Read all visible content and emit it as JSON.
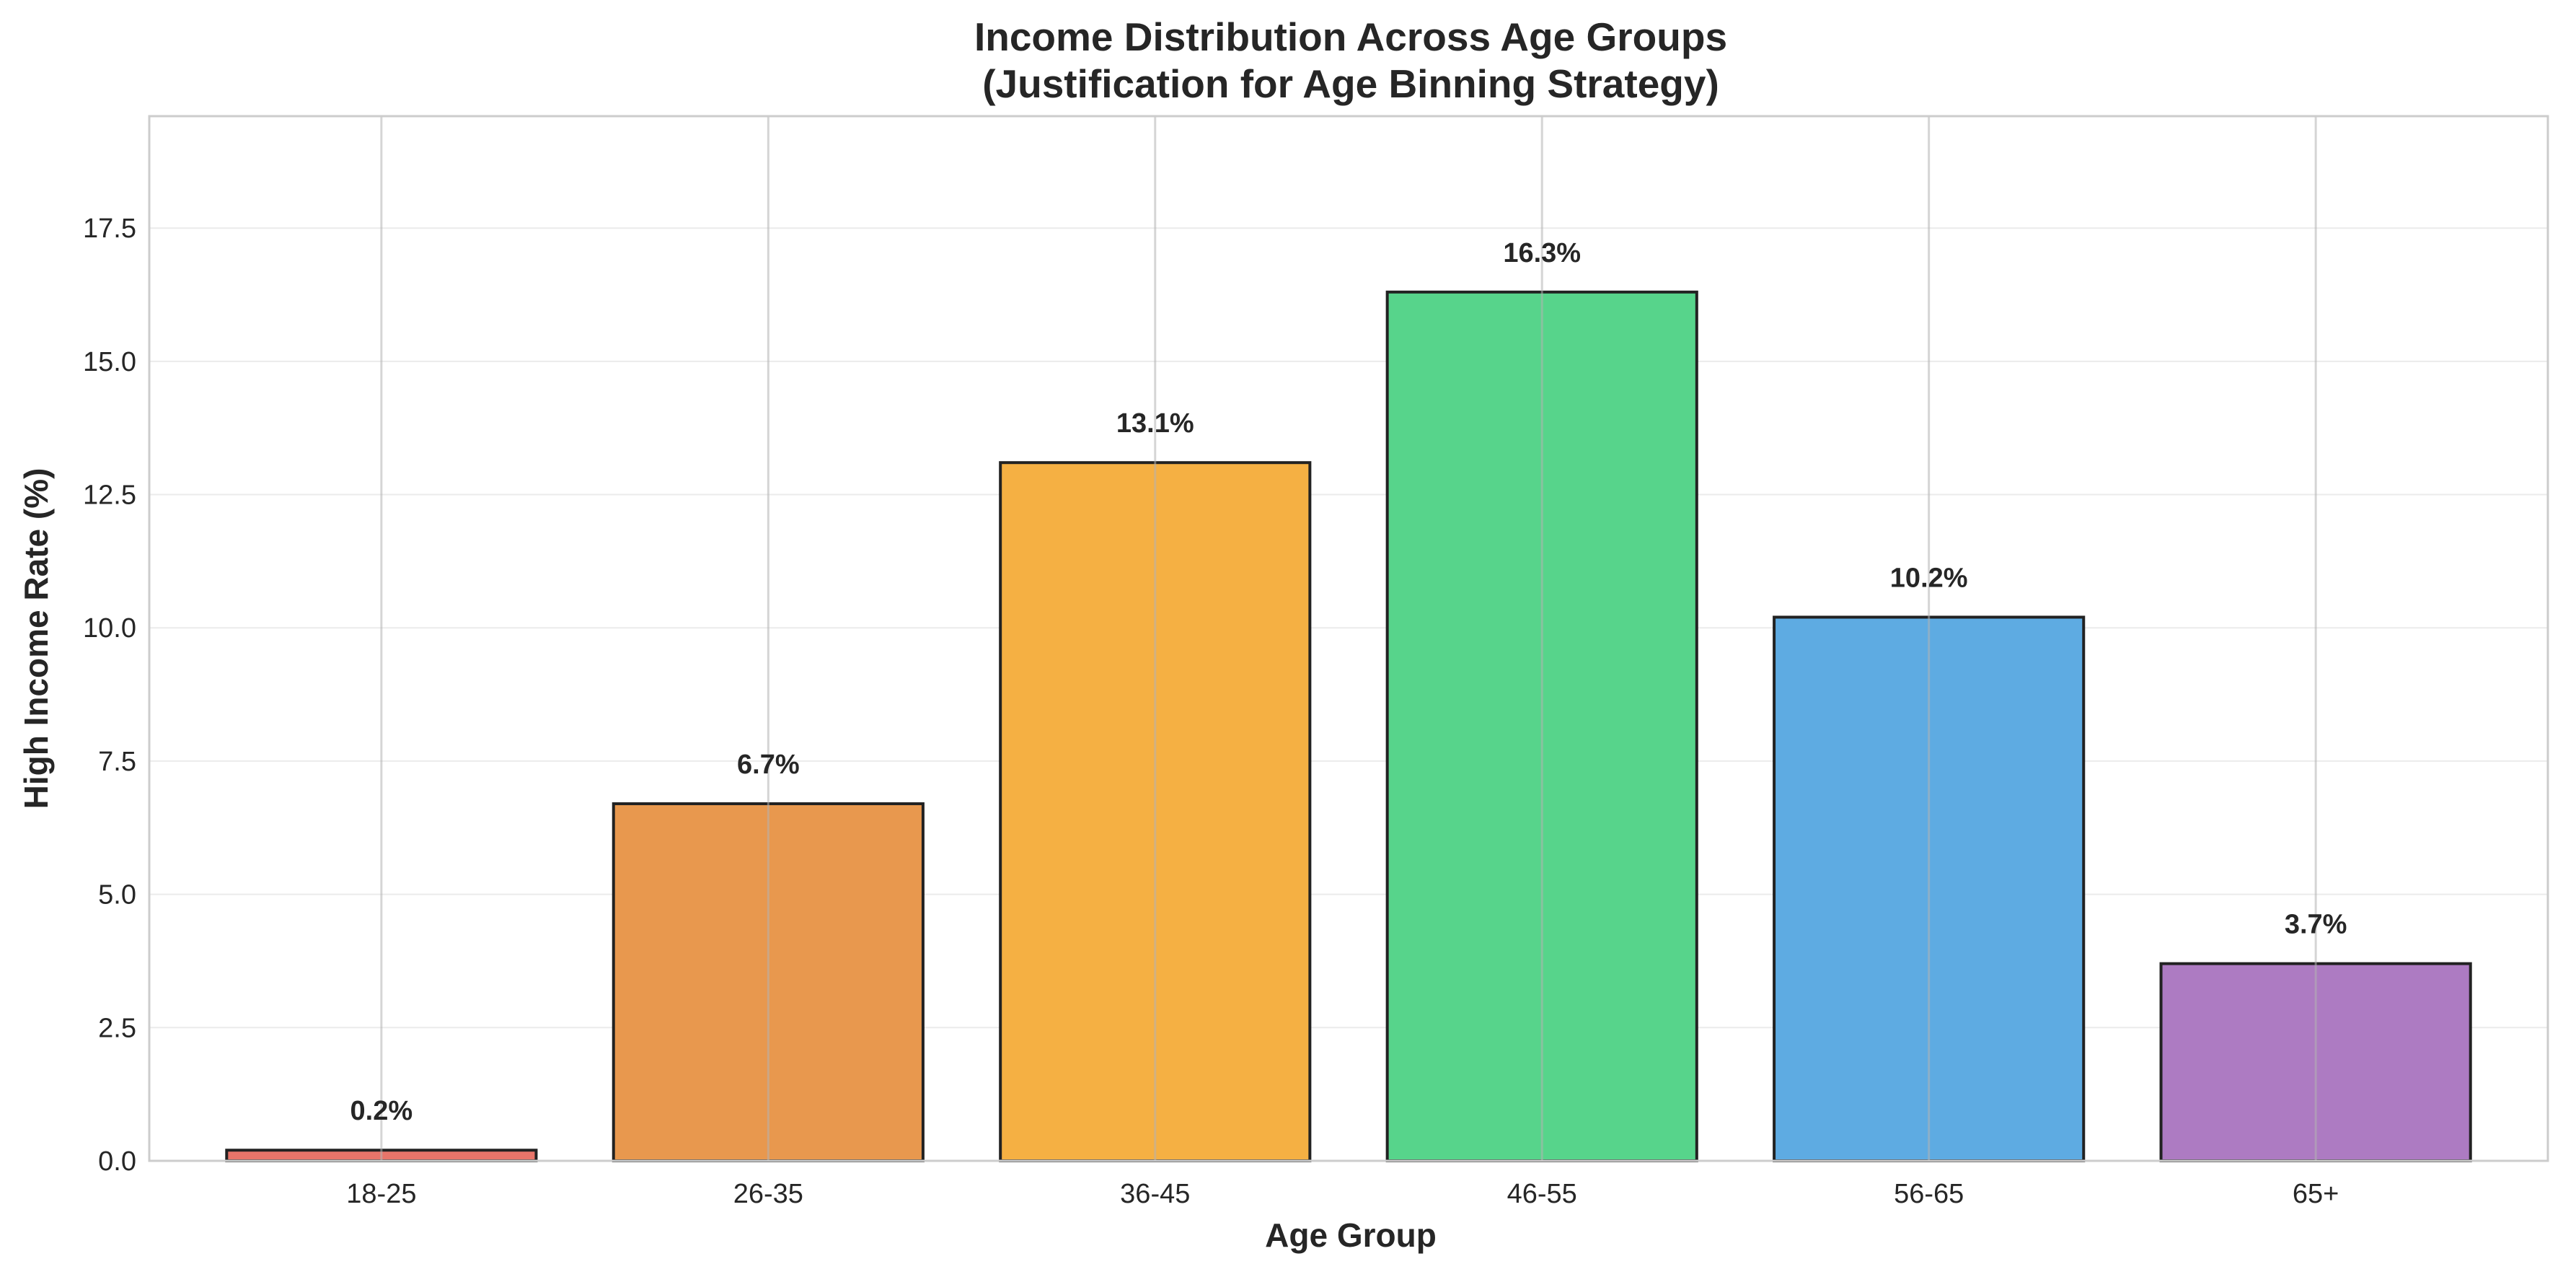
{
  "chart_data": {
    "type": "bar",
    "title": [
      "Income Distribution Across Age Groups",
      "(Justification for Age Binning Strategy)"
    ],
    "xlabel": "Age Group",
    "ylabel": "High Income Rate (%)",
    "categories": [
      "18-25",
      "26-35",
      "36-45",
      "46-55",
      "56-65",
      "65+"
    ],
    "values": [
      0.2,
      6.7,
      13.1,
      16.3,
      10.2,
      3.7
    ],
    "data_labels": [
      "0.2%",
      "6.7%",
      "13.1%",
      "16.3%",
      "10.2%",
      "3.7%"
    ],
    "bar_colors": [
      "#e8756a",
      "#e8984e",
      "#f5b043",
      "#57d48b",
      "#5eabe2",
      "#ad7bc2"
    ],
    "edge_color": "#222222",
    "ylim": [
      0,
      19.6
    ],
    "yticks": [
      0,
      2.5,
      5,
      7.5,
      10,
      12.5,
      15,
      17.5
    ],
    "ytick_labels": [
      "0.0",
      "2.5",
      "5.0",
      "7.5",
      "10.0",
      "12.5",
      "15.0",
      "17.5"
    ],
    "grid": true,
    "legend": "none"
  }
}
